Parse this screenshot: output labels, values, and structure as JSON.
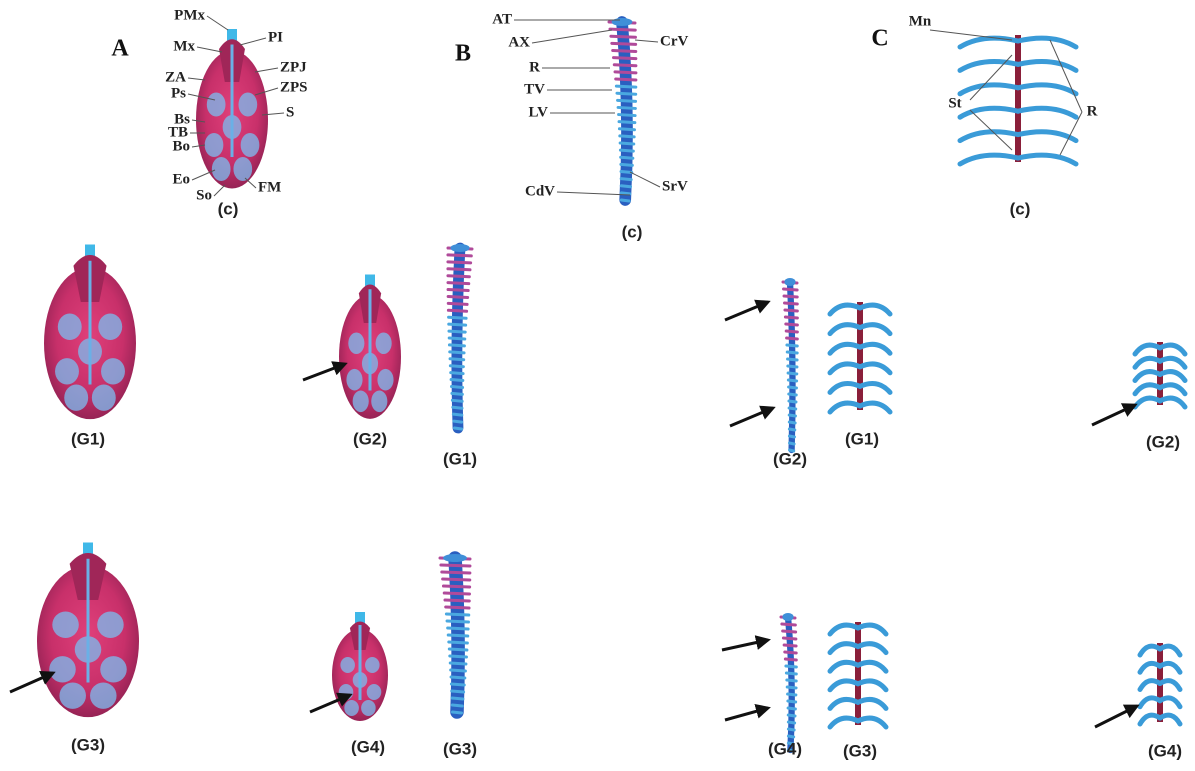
{
  "panels": [
    {
      "letter": "A",
      "control": "(c)",
      "labels": [
        "PMx",
        "Mx",
        "PI",
        "ZA",
        "ZPJ",
        "Ps",
        "ZPS",
        "S",
        "Bs",
        "TB",
        "Bo",
        "Eo",
        "So",
        "FM"
      ],
      "groups": [
        "(G1)",
        "(G2)",
        "(G3)",
        "(G4)"
      ]
    },
    {
      "letter": "B",
      "control": "(c)",
      "labels": [
        "AT",
        "AX",
        "CrV",
        "R",
        "TV",
        "LV",
        "SrV",
        "CdV"
      ],
      "groups": [
        "(G1)",
        "(G2)",
        "(G3)",
        "(G4)"
      ]
    },
    {
      "letter": "C",
      "control": "(c)",
      "labels": [
        "Mn",
        "St",
        "R"
      ],
      "groups": [
        "(G1)",
        "(G2)",
        "(G3)",
        "(G4)"
      ]
    }
  ]
}
